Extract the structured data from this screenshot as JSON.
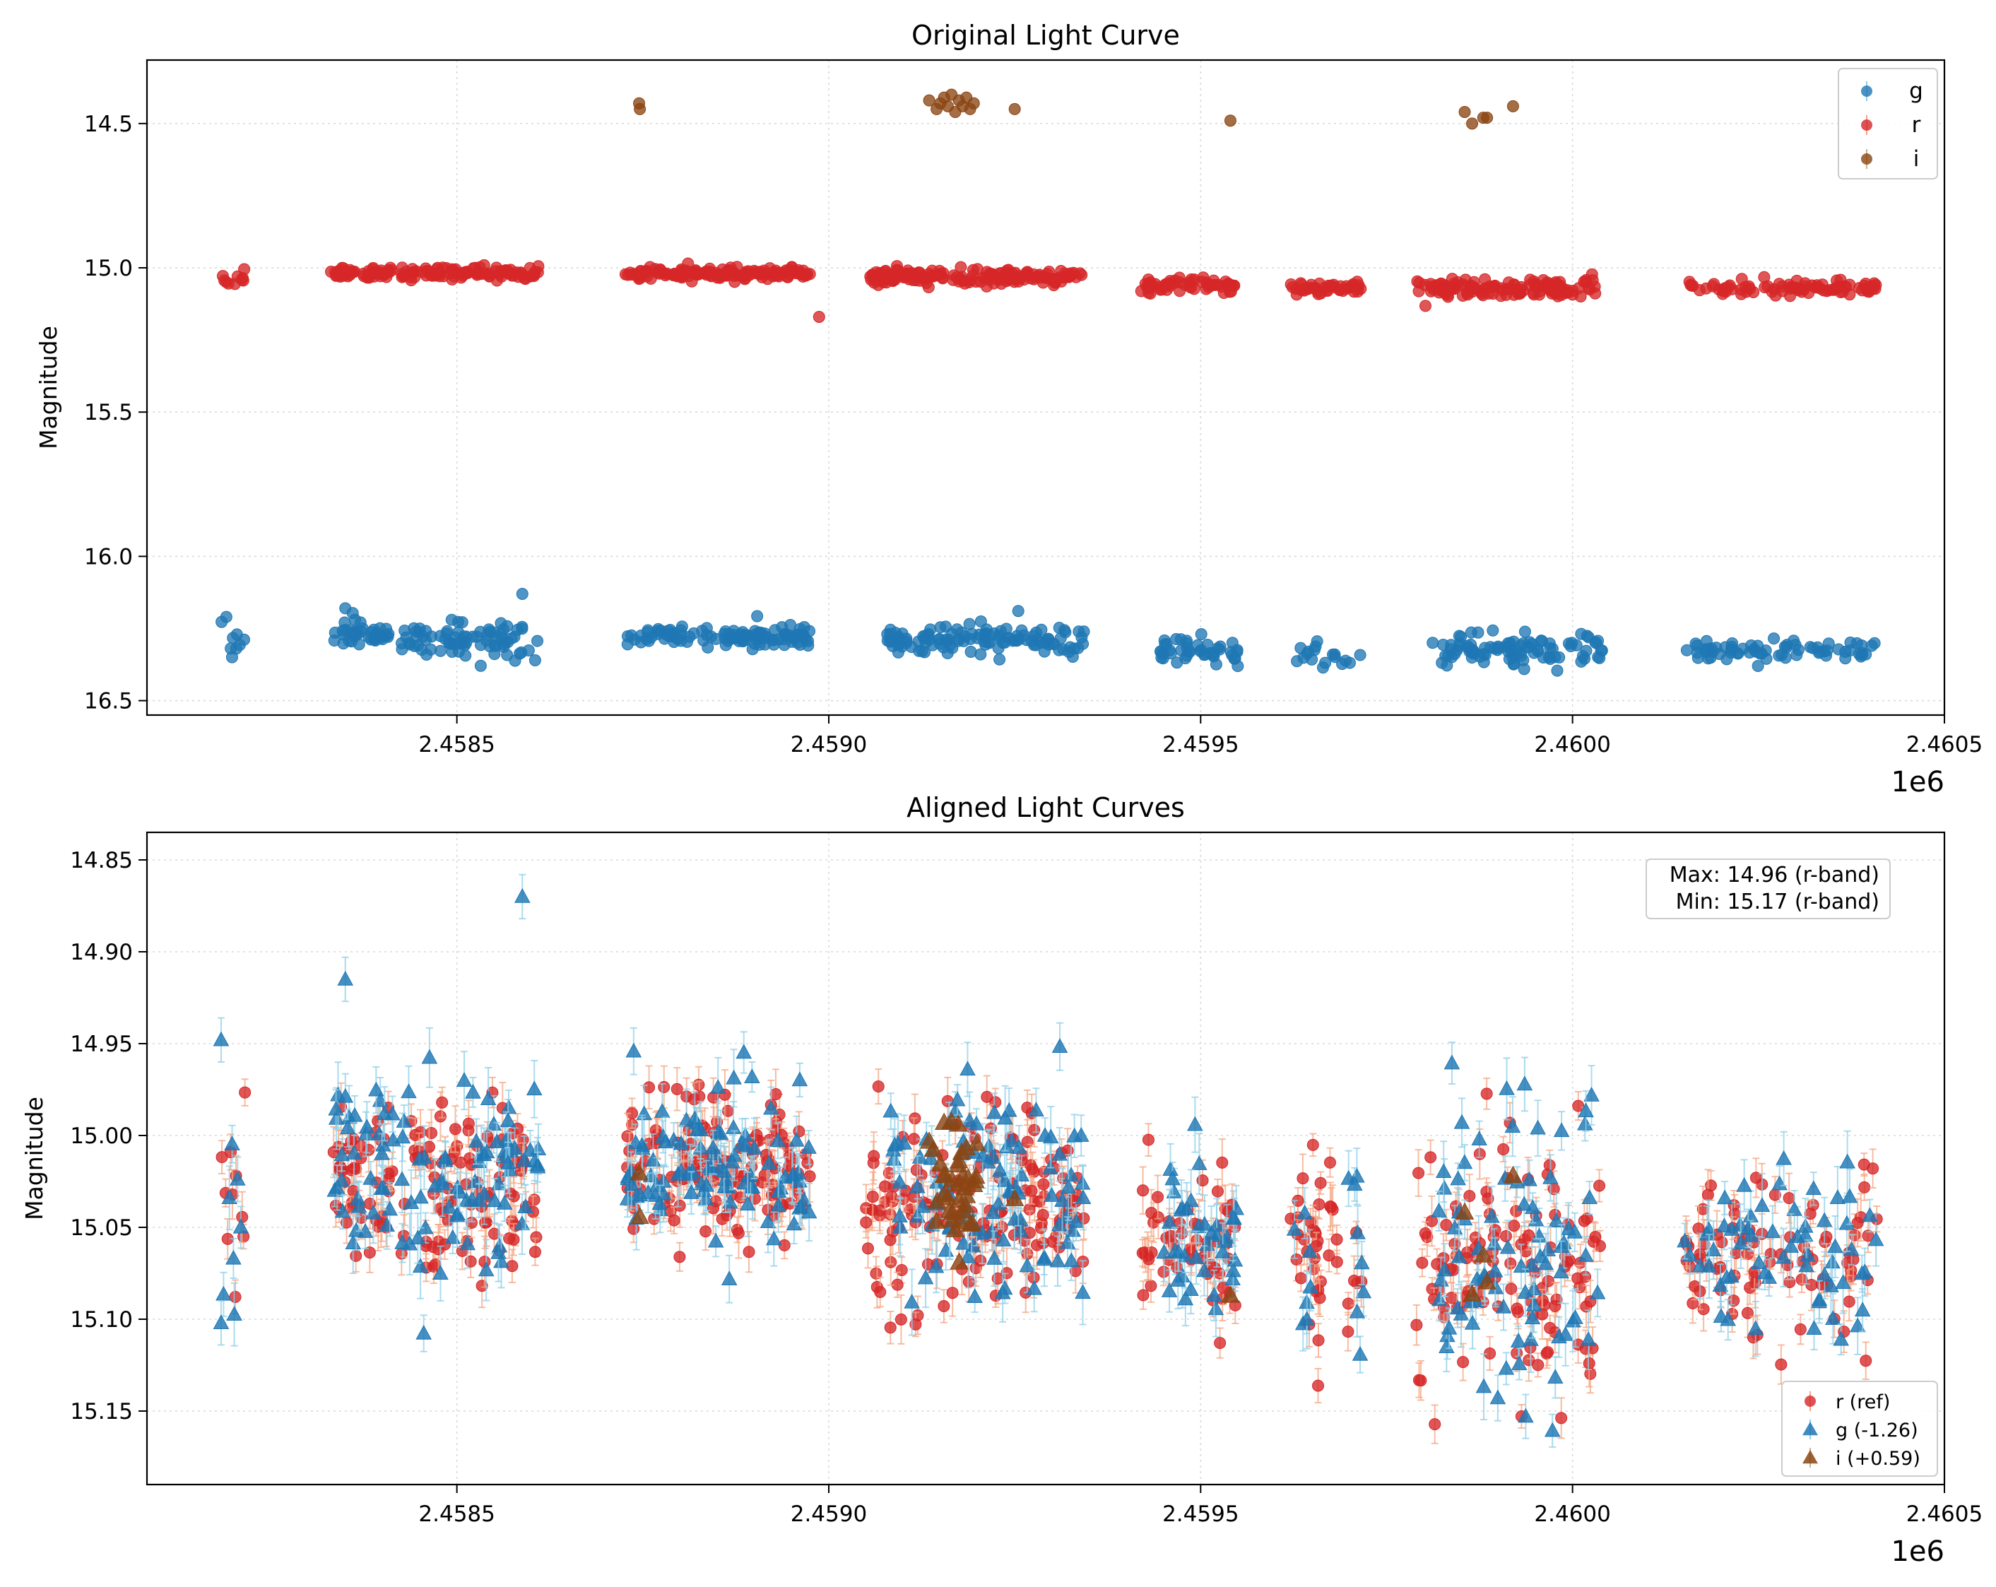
{
  "chart_data": [
    {
      "type": "scatter",
      "title": "Original Light Curve",
      "xlabel": "",
      "ylabel": "Magnitude",
      "x_offset_label": "1e6",
      "xlim": [
        2.4580833,
        2.4605
      ],
      "ylim": [
        16.55,
        14.28
      ],
      "y_inverted": true,
      "grid": true,
      "x_ticks": [
        2.4585,
        2.459,
        2.4595,
        2.46,
        2.4605
      ],
      "x_tick_labels": [
        "2.4585",
        "2.4590",
        "2.4595",
        "2.4600",
        "2.4605"
      ],
      "y_ticks": [
        14.5,
        15.0,
        15.5,
        16.0,
        16.5
      ],
      "y_tick_labels": [
        "14.5",
        "15.0",
        "15.5",
        "16.0",
        "16.5"
      ],
      "legend": {
        "position": "top-right",
        "entries": [
          "g",
          "r",
          "i"
        ]
      },
      "series": [
        {
          "name": "g",
          "color": "#1f77b4",
          "marker": "circle",
          "description": "g-band observations, magnitudes approx. 16.2–16.4 across all seasons",
          "seasons": [
            {
              "x_range": [
                2.458183,
                2.458215
              ],
              "y_center": 16.31,
              "spread": 0.05,
              "count": 8
            },
            {
              "x_range": [
                2.458335,
                2.458415
              ],
              "y_center": 16.27,
              "spread": 0.04,
              "count": 40
            },
            {
              "x_range": [
                2.458425,
                2.45861
              ],
              "y_center": 16.29,
              "spread": 0.05,
              "count": 80
            },
            {
              "x_range": [
                2.458725,
                2.458975
              ],
              "y_center": 16.28,
              "spread": 0.03,
              "count": 110
            },
            {
              "x_range": [
                2.459077,
                2.459345
              ],
              "y_center": 16.29,
              "spread": 0.04,
              "count": 120
            },
            {
              "x_range": [
                2.459445,
                2.45955
              ],
              "y_center": 16.33,
              "spread": 0.04,
              "count": 45
            },
            {
              "x_range": [
                2.45962,
                2.45972
              ],
              "y_center": 16.35,
              "spread": 0.04,
              "count": 18
            },
            {
              "x_range": [
                2.45981,
                2.46004
              ],
              "y_center": 16.32,
              "spread": 0.05,
              "count": 95
            },
            {
              "x_range": [
                2.46015,
                2.46041
              ],
              "y_center": 16.33,
              "spread": 0.03,
              "count": 70
            }
          ],
          "outliers": [
            {
              "x": 2.458588,
              "y": 16.13
            },
            {
              "x": 2.45835,
              "y": 16.18
            },
            {
              "x": 2.45819,
              "y": 16.21
            }
          ]
        },
        {
          "name": "r",
          "color": "#d62728",
          "marker": "circle",
          "description": "r-band observations, magnitudes approx. 15.0–15.1 across all seasons",
          "seasons": [
            {
              "x_range": [
                2.458183,
                2.458215
              ],
              "y_center": 15.03,
              "spread": 0.02,
              "count": 10
            },
            {
              "x_range": [
                2.45833,
                2.458415
              ],
              "y_center": 15.02,
              "spread": 0.02,
              "count": 45
            },
            {
              "x_range": [
                2.458425,
                2.45861
              ],
              "y_center": 15.02,
              "spread": 0.02,
              "count": 90
            },
            {
              "x_range": [
                2.458725,
                2.458975
              ],
              "y_center": 15.02,
              "spread": 0.015,
              "count": 140
            },
            {
              "x_range": [
                2.45905,
                2.459345
              ],
              "y_center": 15.03,
              "spread": 0.02,
              "count": 160
            },
            {
              "x_range": [
                2.45942,
                2.45955
              ],
              "y_center": 15.06,
              "spread": 0.02,
              "count": 55
            },
            {
              "x_range": [
                2.45962,
                2.45972
              ],
              "y_center": 15.07,
              "spread": 0.02,
              "count": 40
            },
            {
              "x_range": [
                2.45979,
                2.46004
              ],
              "y_center": 15.07,
              "spread": 0.03,
              "count": 120
            },
            {
              "x_range": [
                2.46015,
                2.46041
              ],
              "y_center": 15.07,
              "spread": 0.02,
              "count": 85
            }
          ],
          "outliers": [
            {
              "x": 2.458987,
              "y": 15.17
            }
          ]
        },
        {
          "name": "i",
          "color": "#8b4513",
          "marker": "circle",
          "description": "i-band observations, sparse, magnitudes approx. 14.40–14.50",
          "points": [
            {
              "x": 2.458745,
              "y": 14.43
            },
            {
              "x": 2.458746,
              "y": 14.45
            },
            {
              "x": 2.459135,
              "y": 14.42
            },
            {
              "x": 2.459145,
              "y": 14.45
            },
            {
              "x": 2.45915,
              "y": 14.43
            },
            {
              "x": 2.459155,
              "y": 14.41
            },
            {
              "x": 2.45916,
              "y": 14.44
            },
            {
              "x": 2.459165,
              "y": 14.4
            },
            {
              "x": 2.45917,
              "y": 14.46
            },
            {
              "x": 2.459175,
              "y": 14.42
            },
            {
              "x": 2.45918,
              "y": 14.44
            },
            {
              "x": 2.459185,
              "y": 14.41
            },
            {
              "x": 2.45919,
              "y": 14.45
            },
            {
              "x": 2.459195,
              "y": 14.43
            },
            {
              "x": 2.45925,
              "y": 14.45
            },
            {
              "x": 2.45954,
              "y": 14.49
            },
            {
              "x": 2.459855,
              "y": 14.46
            },
            {
              "x": 2.459865,
              "y": 14.5
            },
            {
              "x": 2.45988,
              "y": 14.48
            },
            {
              "x": 2.459885,
              "y": 14.48
            },
            {
              "x": 2.45992,
              "y": 14.44
            }
          ]
        }
      ]
    },
    {
      "type": "scatter",
      "title": "Aligned Light Curves",
      "xlabel": "",
      "ylabel": "Magnitude",
      "x_offset_label": "1e6",
      "xlim": [
        2.4580833,
        2.4605
      ],
      "ylim": [
        15.19,
        14.835
      ],
      "y_inverted": true,
      "grid": true,
      "x_ticks": [
        2.4585,
        2.459,
        2.4595,
        2.46,
        2.4605
      ],
      "x_tick_labels": [
        "2.4585",
        "2.4590",
        "2.4595",
        "2.4600",
        "2.4605"
      ],
      "y_ticks": [
        14.85,
        14.9,
        14.95,
        15.0,
        15.05,
        15.1,
        15.15
      ],
      "y_tick_labels": [
        "14.85",
        "14.90",
        "14.95",
        "15.00",
        "15.05",
        "15.10",
        "15.15"
      ],
      "legend": {
        "position": "bottom-right",
        "entries": [
          "r (ref)",
          "g (-1.26)",
          "i (+0.59)"
        ]
      },
      "annotation": {
        "position": "top-right",
        "lines": [
          "Max: 14.96 (r-band)",
          "Min: 15.17 (r-band)"
        ]
      },
      "series": [
        {
          "name": "r (ref)",
          "color": "#d62728",
          "marker": "circle",
          "error_color": "#f4a582",
          "description": "r-band reference, magnitudes approx. 14.96–15.17"
        },
        {
          "name": "g (-1.26)",
          "color": "#1f77b4",
          "marker": "triangle",
          "error_color": "#8ecfe8",
          "description": "g-band shifted by -1.26, magnitudes approx. 14.87–15.15",
          "outliers": [
            {
              "x": 2.458588,
              "y": 14.87
            },
            {
              "x": 2.45835,
              "y": 14.915
            },
            {
              "x": 2.458183,
              "y": 14.948
            },
            {
              "x": 2.458183,
              "y": 15.102
            }
          ]
        },
        {
          "name": "i (+0.59)",
          "color": "#8b4513",
          "marker": "triangle",
          "description": "i-band shifted by +0.59, magnitudes approx. 14.99–15.10"
        }
      ]
    }
  ]
}
